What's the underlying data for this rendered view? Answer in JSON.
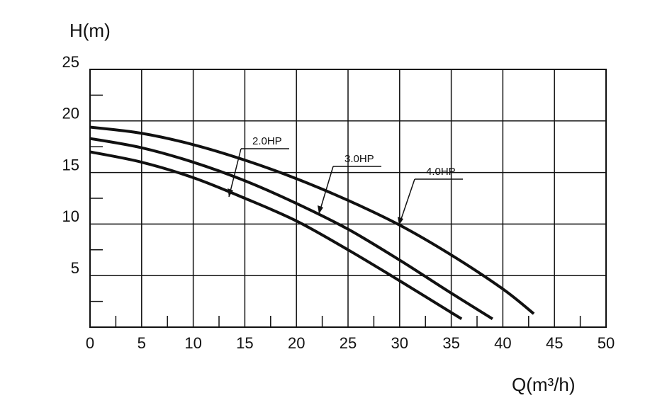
{
  "chart_data": {
    "type": "line",
    "y_label": "H(m)",
    "x_label": "Q(m³/h)",
    "xlim": [
      0,
      50
    ],
    "ylim": [
      0,
      25
    ],
    "xticks": [
      0,
      5,
      10,
      15,
      20,
      25,
      30,
      35,
      40,
      45,
      50
    ],
    "yticks": [
      5,
      10,
      15,
      20,
      25
    ],
    "xminorticks": [
      2.5,
      7.5,
      12.5,
      17.5,
      22.5,
      27.5,
      32.5,
      37.5,
      42.5,
      47.5
    ],
    "yminorticks": [
      2.5,
      7.5,
      12.5,
      17.5,
      22.5
    ],
    "grid": true,
    "series": [
      {
        "name": "2.0HP",
        "color": "#111111",
        "x": [
          0,
          5,
          10,
          15,
          20,
          25,
          30,
          36
        ],
        "values": [
          17.0,
          16.0,
          14.5,
          12.5,
          10.3,
          7.5,
          4.5,
          0.8
        ]
      },
      {
        "name": "3.0HP",
        "color": "#111111",
        "x": [
          0,
          5,
          10,
          15,
          20,
          25,
          30,
          35,
          39
        ],
        "values": [
          18.3,
          17.4,
          16.0,
          14.2,
          12.0,
          9.5,
          6.5,
          3.3,
          0.8
        ]
      },
      {
        "name": "4.0HP",
        "color": "#111111",
        "x": [
          0,
          5,
          10,
          15,
          20,
          25,
          30,
          35,
          40,
          43
        ],
        "values": [
          19.4,
          18.8,
          17.7,
          16.2,
          14.4,
          12.3,
          9.9,
          7.0,
          3.7,
          1.3
        ]
      }
    ]
  }
}
